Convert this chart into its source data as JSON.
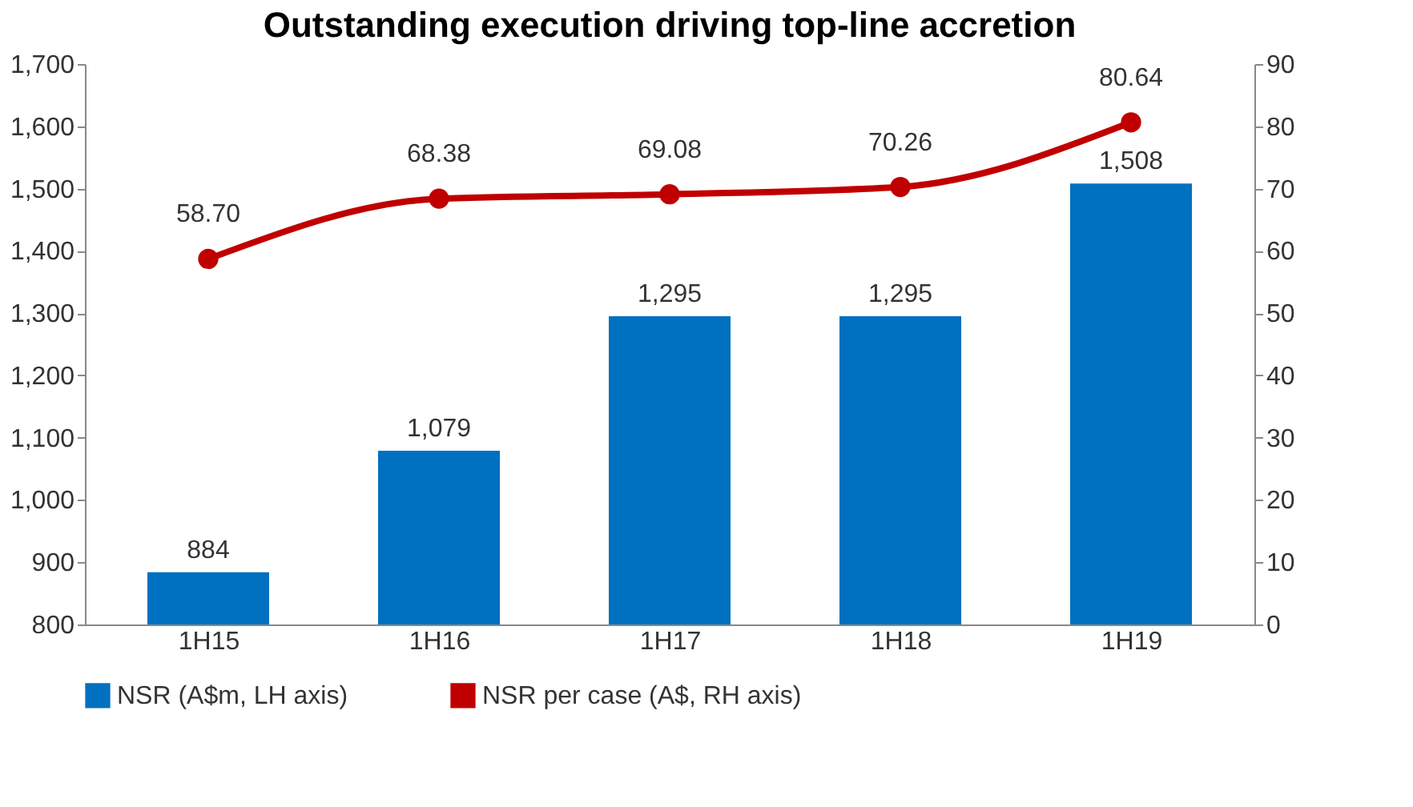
{
  "chart_data": {
    "type": "bar",
    "title": "Outstanding execution driving top-line accretion",
    "categories": [
      "1H15",
      "1H16",
      "1H17",
      "1H18",
      "1H19"
    ],
    "series": [
      {
        "name": "NSR (A$m, LH axis)",
        "color": "#0070c0",
        "values": [
          884,
          1079,
          1295,
          1295,
          1508
        ]
      },
      {
        "name": "NSR per case (A$, RH axis)",
        "type": "line",
        "axis": "y2",
        "color": "#c00000",
        "marker": "circle",
        "values": [
          58.7,
          68.38,
          69.08,
          70.26,
          80.64
        ]
      }
    ],
    "value_labels": [
      [
        "884",
        "1,079",
        "1,295",
        "1,295",
        "1,508"
      ],
      [
        "58.70",
        "68.38",
        "69.08",
        "70.26",
        "80.64"
      ]
    ],
    "ylim": [
      800,
      1700
    ],
    "yticks": [
      {
        "value": 800,
        "label": "800"
      },
      {
        "value": 900,
        "label": "900"
      },
      {
        "value": 1000,
        "label": "1,000"
      },
      {
        "value": 1100,
        "label": "1,100"
      },
      {
        "value": 1200,
        "label": "1,200"
      },
      {
        "value": 1300,
        "label": "1,300"
      },
      {
        "value": 1400,
        "label": "1,400"
      },
      {
        "value": 1500,
        "label": "1,500"
      },
      {
        "value": 1600,
        "label": "1,600"
      },
      {
        "value": 1700,
        "label": "1,700"
      }
    ],
    "y2lim": [
      0,
      90
    ],
    "y2ticks": [
      0,
      10,
      20,
      30,
      40,
      50,
      60,
      70,
      80,
      90
    ],
    "grid": false,
    "legend": "bottom"
  }
}
